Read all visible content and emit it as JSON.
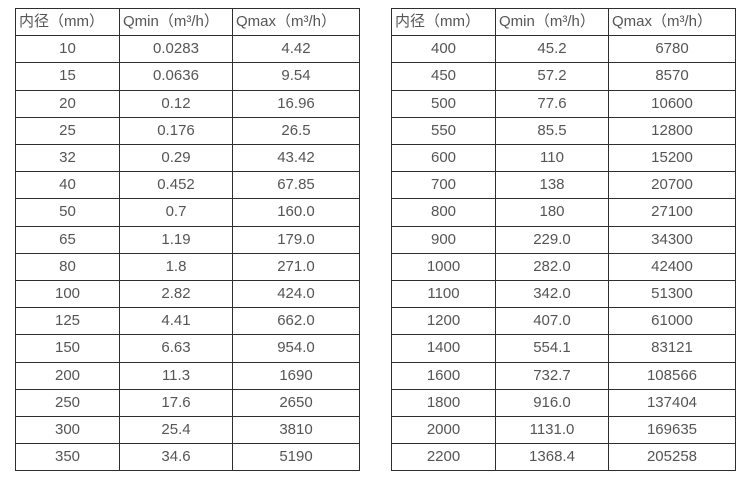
{
  "tables": [
    {
      "name": "small-diameter-flow-table",
      "headers": [
        "内径（mm）",
        "Qmin（m³/h）",
        "Qmax（m³/h）"
      ],
      "rows": [
        [
          "10",
          "0.0283",
          "4.42"
        ],
        [
          "15",
          "0.0636",
          "9.54"
        ],
        [
          "20",
          "0.12",
          "16.96"
        ],
        [
          "25",
          "0.176",
          "26.5"
        ],
        [
          "32",
          "0.29",
          "43.42"
        ],
        [
          "40",
          "0.452",
          "67.85"
        ],
        [
          "50",
          "0.7",
          "160.0"
        ],
        [
          "65",
          "1.19",
          "179.0"
        ],
        [
          "80",
          "1.8",
          "271.0"
        ],
        [
          "100",
          "2.82",
          "424.0"
        ],
        [
          "125",
          "4.41",
          "662.0"
        ],
        [
          "150",
          "6.63",
          "954.0"
        ],
        [
          "200",
          "11.3",
          "1690"
        ],
        [
          "250",
          "17.6",
          "2650"
        ],
        [
          "300",
          "25.4",
          "3810"
        ],
        [
          "350",
          "34.6",
          "5190"
        ]
      ]
    },
    {
      "name": "large-diameter-flow-table",
      "headers": [
        "内径（mm）",
        "Qmin（m³/h）",
        "Qmax（m³/h）"
      ],
      "rows": [
        [
          "400",
          "45.2",
          "6780"
        ],
        [
          "450",
          "57.2",
          "8570"
        ],
        [
          "500",
          "77.6",
          "10600"
        ],
        [
          "550",
          "85.5",
          "12800"
        ],
        [
          "600",
          "110",
          "15200"
        ],
        [
          "700",
          "138",
          "20700"
        ],
        [
          "800",
          "180",
          "27100"
        ],
        [
          "900",
          "229.0",
          "34300"
        ],
        [
          "1000",
          "282.0",
          "42400"
        ],
        [
          "1100",
          "342.0",
          "51300"
        ],
        [
          "1200",
          "407.0",
          "61000"
        ],
        [
          "1400",
          "554.1",
          "83121"
        ],
        [
          "1600",
          "732.7",
          "108566"
        ],
        [
          "1800",
          "916.0",
          "137404"
        ],
        [
          "2000",
          "1131.0",
          "169635"
        ],
        [
          "2200",
          "1368.4",
          "205258"
        ]
      ]
    }
  ],
  "colors": {
    "border": "#2e2e2e",
    "text": "#555555",
    "background": "#ffffff"
  }
}
